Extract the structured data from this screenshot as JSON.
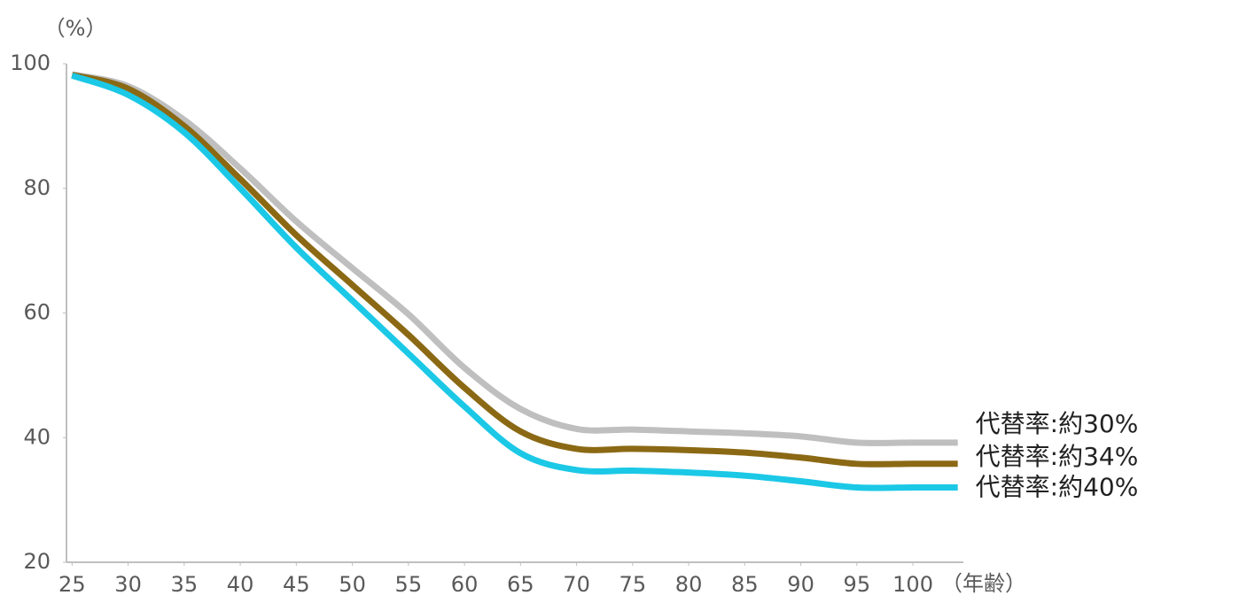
{
  "chart_data": {
    "type": "line",
    "y_unit": "（%）",
    "x_unit": "（年齢）",
    "x": [
      25,
      30,
      35,
      40,
      45,
      50,
      55,
      60,
      65,
      70,
      75,
      80,
      85,
      90,
      95,
      100,
      104
    ],
    "series": [
      {
        "name": "代替率:約30%",
        "color": "#bfbfbf",
        "values": [
          98.3,
          96.4,
          91,
          83.2,
          74.7,
          67.2,
          59.8,
          51.2,
          44.6,
          41.4,
          41.3,
          41,
          40.7,
          40.2,
          39.2,
          39.2,
          39.2
        ]
      },
      {
        "name": "代替率:約34%",
        "color": "#8b6914",
        "values": [
          98.2,
          96,
          90,
          81.5,
          72.5,
          64.5,
          56.5,
          48,
          41,
          38.2,
          38.2,
          38,
          37.6,
          36.8,
          35.8,
          35.8,
          35.8
        ]
      },
      {
        "name": "代替率:約40%",
        "color": "#1bc8e6",
        "values": [
          98.1,
          95,
          89,
          80,
          70.5,
          62,
          53.5,
          45,
          37.5,
          34.8,
          34.7,
          34.4,
          33.9,
          33,
          32,
          32,
          32
        ]
      }
    ],
    "xlim": [
      24.5,
      104.5
    ],
    "ylim": [
      20,
      100
    ],
    "xticks": [
      25,
      30,
      35,
      40,
      45,
      50,
      55,
      60,
      65,
      70,
      75,
      80,
      85,
      90,
      95,
      100
    ],
    "yticks": [
      20,
      40,
      60,
      80,
      100
    ]
  }
}
